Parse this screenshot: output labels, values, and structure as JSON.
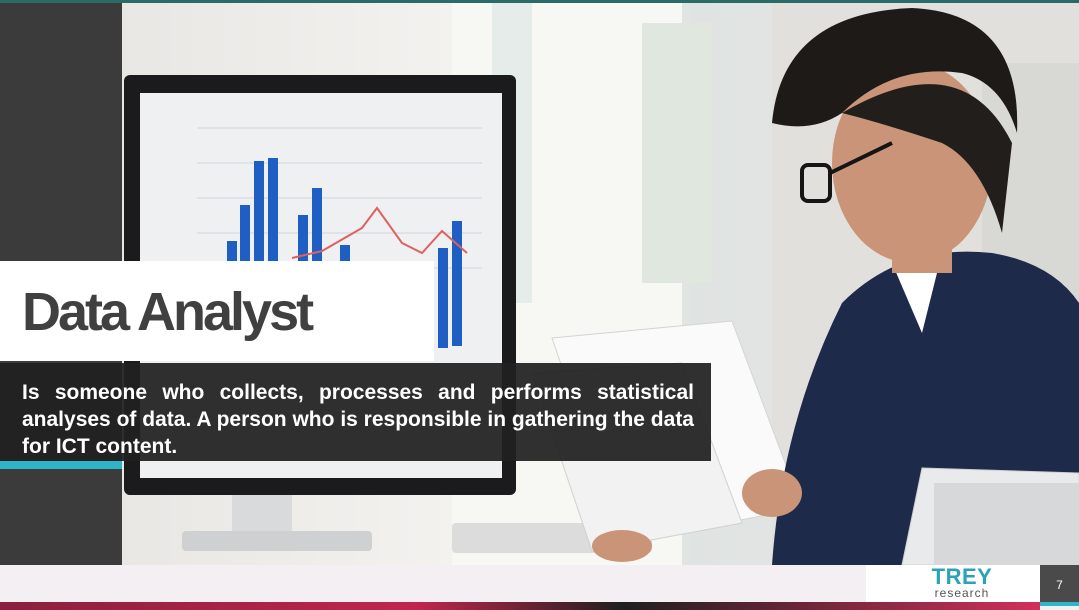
{
  "slide": {
    "title": "Data Analyst",
    "description": "Is someone who collects, processes and performs statistical analyses of data. A person who is responsible in gathering the data for ICT content.",
    "page_number": "7"
  },
  "logo": {
    "main": "TREY",
    "sub": "research"
  },
  "photo": {
    "subject": "data-analyst-photo"
  },
  "colors": {
    "accent": "#2fb4c8",
    "dark_bar": "#3b3b3b",
    "title_text": "#404040",
    "logo": "#2aa3b7"
  }
}
